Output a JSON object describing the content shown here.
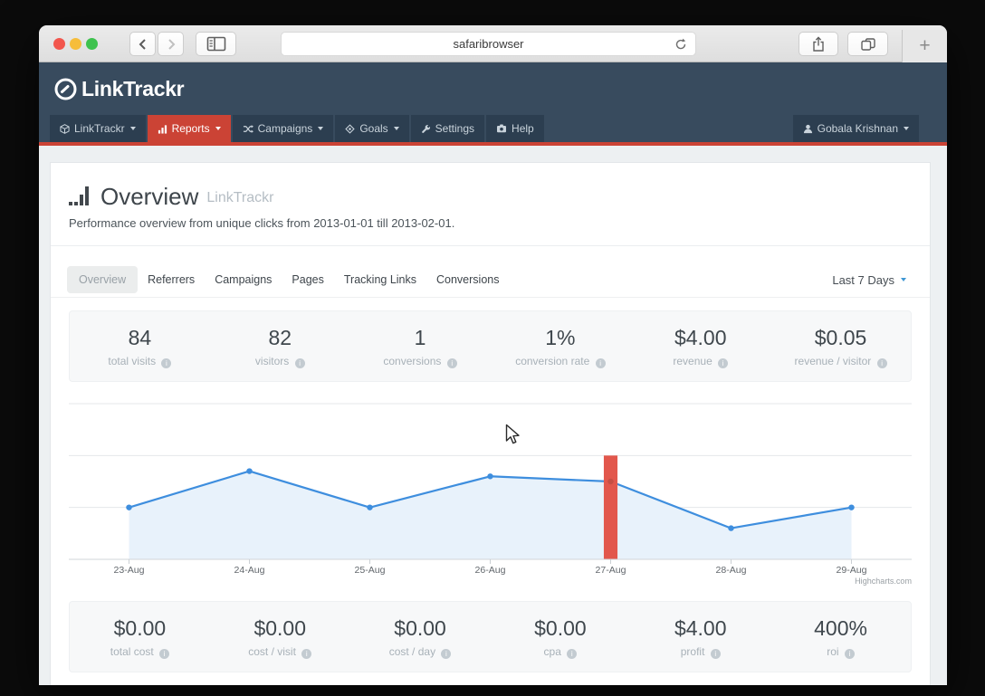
{
  "browser": {
    "url_text": "safaribrowser",
    "new_tab_label": "+"
  },
  "header": {
    "brand": "LinkTrackr",
    "nav": [
      {
        "label": "LinkTrackr",
        "icon": "cube-icon",
        "caret": true,
        "active": false
      },
      {
        "label": "Reports",
        "icon": "bar-chart-icon",
        "caret": true,
        "active": true
      },
      {
        "label": "Campaigns",
        "icon": "shuffle-icon",
        "caret": true,
        "active": false
      },
      {
        "label": "Goals",
        "icon": "goal-icon",
        "caret": true,
        "active": false
      },
      {
        "label": "Settings",
        "icon": "wrench-icon",
        "caret": false,
        "active": false
      },
      {
        "label": "Help",
        "icon": "help-icon",
        "caret": false,
        "active": false
      }
    ],
    "user": {
      "label": "Gobala Krishnan",
      "icon": "user-icon",
      "caret": true
    },
    "colors": {
      "header_bg": "#384b5e",
      "item_bg": "#2c3e50",
      "accent_red": "#cb4335"
    }
  },
  "page": {
    "title": "Overview",
    "title_suffix": "LinkTrackr",
    "subtitle": "Performance overview from unique clicks from 2013-01-01 till 2013-02-01.",
    "tabs": [
      "Overview",
      "Referrers",
      "Campaigns",
      "Pages",
      "Tracking Links",
      "Conversions"
    ],
    "active_tab": "Overview",
    "range_selector": "Last 7 Days",
    "stats_top": [
      {
        "value": "84",
        "label": "total visits"
      },
      {
        "value": "82",
        "label": "visitors"
      },
      {
        "value": "1",
        "label": "conversions"
      },
      {
        "value": "1%",
        "label": "conversion rate"
      },
      {
        "value": "$4.00",
        "label": "revenue"
      },
      {
        "value": "$0.05",
        "label": "revenue / visitor"
      }
    ],
    "stats_bottom": [
      {
        "value": "$0.00",
        "label": "total cost"
      },
      {
        "value": "$0.00",
        "label": "cost / visit"
      },
      {
        "value": "$0.00",
        "label": "cost / day"
      },
      {
        "value": "$0.00",
        "label": "cpa"
      },
      {
        "value": "$4.00",
        "label": "profit"
      },
      {
        "value": "400%",
        "label": "roi"
      }
    ]
  },
  "chart_data": {
    "type": "line",
    "categories": [
      "23-Aug",
      "24-Aug",
      "25-Aug",
      "26-Aug",
      "27-Aug",
      "28-Aug",
      "29-Aug"
    ],
    "series": [
      {
        "name": "visits",
        "type": "area",
        "color": "#3e8ede",
        "fill": "#e8f2fb",
        "values": [
          10,
          17,
          10,
          16,
          15,
          6,
          10
        ]
      },
      {
        "name": "highlight",
        "type": "column",
        "color": "#e2574c",
        "values": [
          null,
          null,
          null,
          null,
          20,
          null,
          null
        ]
      }
    ],
    "ylim": [
      0,
      30
    ],
    "ygrid": [
      10,
      20,
      30
    ],
    "legend": "none",
    "credits": "Highcharts.com"
  }
}
